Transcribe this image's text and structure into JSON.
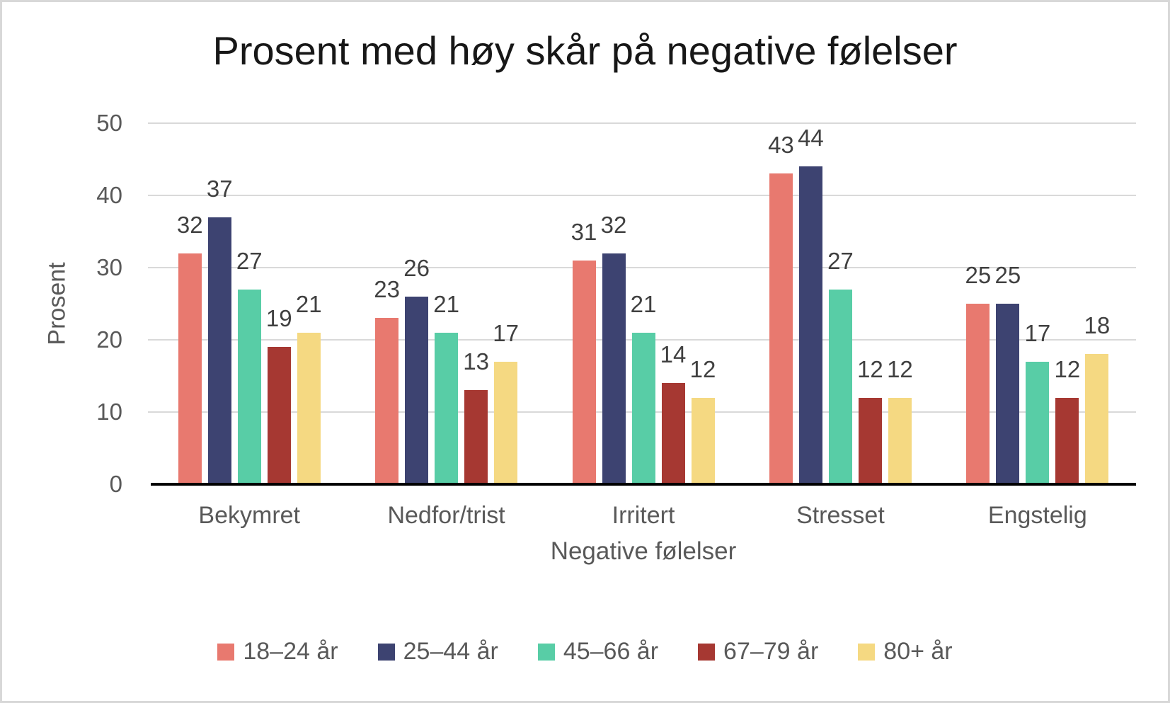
{
  "chart_data": {
    "type": "bar",
    "title": "Prosent med høy skår på negative følelser",
    "xlabel": "Negative følelser",
    "ylabel": "Prosent",
    "ylim": [
      0,
      50
    ],
    "yticks": [
      0,
      10,
      20,
      30,
      40,
      50
    ],
    "grid": true,
    "legend_position": "bottom",
    "categories": [
      "Bekymret",
      "Nedfor/trist",
      "Irritert",
      "Stresset",
      "Engstelig"
    ],
    "series": [
      {
        "name": "18–24 år",
        "color": "#E8796F",
        "values": [
          32,
          23,
          31,
          43,
          25
        ]
      },
      {
        "name": "25–44 år",
        "color": "#3D4371",
        "values": [
          37,
          26,
          32,
          44,
          25
        ]
      },
      {
        "name": "45–66 år",
        "color": "#58CDA6",
        "values": [
          27,
          21,
          21,
          27,
          17
        ]
      },
      {
        "name": "67–79 år",
        "color": "#A63832",
        "values": [
          19,
          13,
          14,
          12,
          12
        ]
      },
      {
        "name": "80+ år",
        "color": "#F5D982",
        "values": [
          21,
          17,
          12,
          12,
          18
        ]
      }
    ],
    "colors": {
      "gridline": "#D9D9D9",
      "axis_line": "#000000",
      "axis_text": "#595959",
      "data_label": "#404040",
      "title_text": "#171717"
    }
  }
}
